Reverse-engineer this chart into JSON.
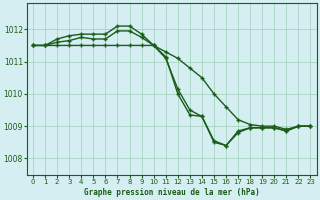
{
  "title": "Graphe pression niveau de la mer (hPa)",
  "xlim": [
    -0.5,
    23.5
  ],
  "ylim": [
    1007.5,
    1012.8
  ],
  "yticks": [
    1008,
    1009,
    1010,
    1011,
    1012
  ],
  "xticks": [
    0,
    1,
    2,
    3,
    4,
    5,
    6,
    7,
    8,
    9,
    10,
    11,
    12,
    13,
    14,
    15,
    16,
    17,
    18,
    19,
    20,
    21,
    22,
    23
  ],
  "bg_color": "#d5eef2",
  "grid_color": "#9fcfba",
  "line_color": "#1a5c18",
  "line1_x": [
    0,
    1,
    2,
    3,
    4,
    5,
    6,
    7,
    8,
    9,
    10,
    11,
    12,
    13,
    14,
    15,
    16,
    17,
    18,
    19,
    20,
    21,
    22,
    23
  ],
  "line1_y": [
    1011.5,
    1011.5,
    1011.7,
    1011.8,
    1011.85,
    1011.85,
    1011.85,
    1012.1,
    1012.1,
    1011.85,
    1011.5,
    1011.15,
    1010.0,
    1009.35,
    1009.3,
    1008.5,
    1008.4,
    1008.8,
    1008.95,
    1008.95,
    1008.95,
    1008.85,
    1009.0,
    1009.0
  ],
  "line2_x": [
    0,
    1,
    2,
    3,
    4,
    5,
    6,
    7,
    8,
    9,
    10,
    11,
    12,
    13,
    14,
    15,
    16,
    17,
    18,
    19,
    20,
    21,
    22,
    23
  ],
  "line2_y": [
    1011.5,
    1011.5,
    1011.5,
    1011.5,
    1011.5,
    1011.5,
    1011.5,
    1011.5,
    1011.5,
    1011.5,
    1011.5,
    1011.3,
    1011.1,
    1010.8,
    1010.5,
    1010.0,
    1009.6,
    1009.2,
    1009.05,
    1009.0,
    1009.0,
    1008.9,
    1009.0,
    1009.0
  ],
  "line3_x": [
    0,
    1,
    2,
    3,
    4,
    5,
    6,
    7,
    8,
    9,
    10,
    11,
    12,
    13,
    14,
    15,
    16,
    17,
    18,
    19,
    20,
    21,
    22,
    23
  ],
  "line3_y": [
    1011.5,
    1011.5,
    1011.6,
    1011.65,
    1011.75,
    1011.7,
    1011.7,
    1011.95,
    1011.95,
    1011.75,
    1011.5,
    1011.1,
    1010.15,
    1009.5,
    1009.3,
    1008.55,
    1008.4,
    1008.85,
    1008.95,
    1008.95,
    1008.95,
    1008.85,
    1009.0,
    1009.0
  ]
}
